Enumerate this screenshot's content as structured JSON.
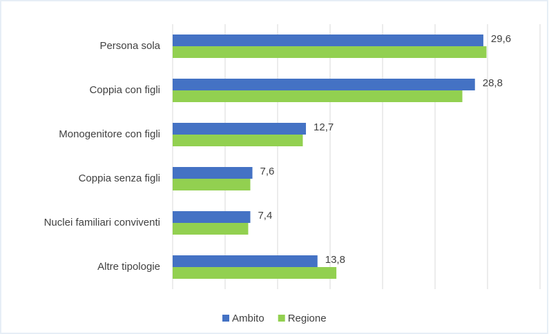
{
  "chart_data": {
    "type": "hbar",
    "categories": [
      "Persona sola",
      "Coppia con figli",
      "Monogenitore con figli",
      "Coppia senza figli",
      "Nuclei familiari conviventi",
      "Altre tipologie"
    ],
    "series": [
      {
        "name": "Ambito",
        "color": "#4472c4",
        "values": [
          29.6,
          28.8,
          12.7,
          7.6,
          7.4,
          13.8
        ],
        "value_labels": [
          "29,6",
          "28,8",
          "12,7",
          "7,6",
          "7,4",
          "13,8"
        ]
      },
      {
        "name": "Regione",
        "color": "#92d050",
        "values": [
          29.9,
          27.6,
          12.4,
          7.4,
          7.2,
          15.6
        ]
      }
    ],
    "xlim": [
      0,
      35
    ],
    "xticks": [
      0,
      5,
      10,
      15,
      20,
      25,
      30,
      35
    ],
    "grid": true,
    "legend": "bottom"
  }
}
